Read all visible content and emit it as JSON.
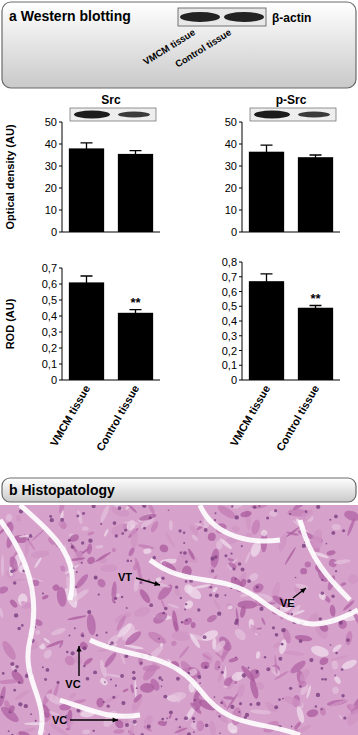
{
  "panel_a": {
    "header": "a Western blotting",
    "blot_label": "β-actin",
    "blot_lanes": [
      "VMCM tissue",
      "Control tissue"
    ]
  },
  "chart_data": [
    {
      "type": "bar",
      "title": "Src",
      "y_label": "Optical density (AU)",
      "categories": [
        null,
        null
      ],
      "values": [
        38,
        35.5
      ],
      "errors": [
        2.5,
        1.5
      ],
      "color": "#000000",
      "ylim": [
        0,
        50
      ],
      "yticks": [
        0,
        10,
        20,
        30,
        40,
        50
      ],
      "tick_labels": "y"
    },
    {
      "type": "bar",
      "title": "p-Src",
      "categories": [
        null,
        null
      ],
      "values": [
        36.5,
        34
      ],
      "errors": [
        3,
        1
      ],
      "color": "#000000",
      "ylim": [
        0,
        50
      ],
      "yticks": [
        0,
        10,
        20,
        30,
        40,
        50
      ],
      "tick_labels": "y"
    },
    {
      "type": "bar",
      "y_label": "ROD (AU)",
      "categories": [
        "VMCM tissue",
        "Control tissue"
      ],
      "values": [
        0.61,
        0.42
      ],
      "errors": [
        0.04,
        0.02
      ],
      "significance": [
        null,
        "**"
      ],
      "color": "#000000",
      "ylim": [
        0,
        0.7
      ],
      "yticks": [
        0,
        {
          "value": 0.1,
          "label": "0,1"
        },
        {
          "value": 0.2,
          "label": "0,2"
        },
        {
          "value": 0.3,
          "label": "0,3"
        },
        {
          "value": 0.4,
          "label": "0,4"
        },
        {
          "value": 0.5,
          "label": "0,5"
        },
        {
          "value": 0.6,
          "label": "0,6"
        },
        {
          "value": 0.7,
          "label": "0,7"
        }
      ]
    },
    {
      "type": "bar",
      "categories": [
        "VMCM tissue",
        "Control tissue"
      ],
      "values": [
        0.67,
        0.49
      ],
      "errors": [
        0.05,
        0.015
      ],
      "significance": [
        null,
        "**"
      ],
      "color": "#000000",
      "ylim": [
        0,
        0.8
      ],
      "yticks": [
        0,
        {
          "value": 0.1,
          "label": "0,1"
        },
        {
          "value": 0.2,
          "label": "0,2"
        },
        {
          "value": 0.3,
          "label": "0,3"
        },
        {
          "value": 0.4,
          "label": "0,4"
        },
        {
          "value": 0.5,
          "label": "0,5"
        },
        {
          "value": 0.6,
          "label": "0,6"
        },
        {
          "value": 0.7,
          "label": "0,7"
        },
        {
          "value": 0.8,
          "label": "0,8"
        }
      ]
    }
  ],
  "panel_b": {
    "header": "b Histopatology",
    "labels": [
      "VT",
      "VE",
      "VC",
      "VC"
    ]
  }
}
